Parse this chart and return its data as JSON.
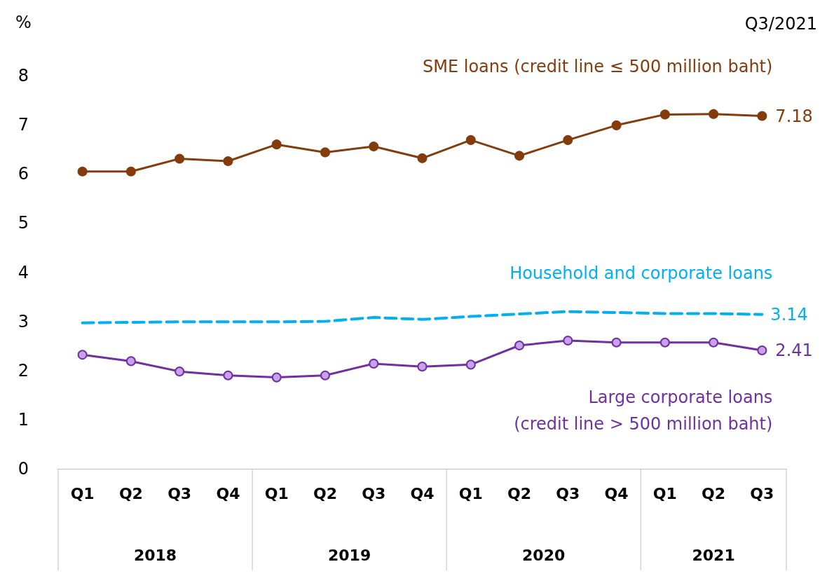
{
  "chart_data": {
    "type": "line",
    "ylabel": "%",
    "subtitle": "Q3/2021",
    "categories": [
      "Q1",
      "Q2",
      "Q3",
      "Q4",
      "Q1",
      "Q2",
      "Q3",
      "Q4",
      "Q1",
      "Q2",
      "Q3",
      "Q4",
      "Q1",
      "Q2",
      "Q3"
    ],
    "annotations": [
      "2018",
      "2019",
      "2020",
      "2021"
    ],
    "ylim": [
      0,
      8
    ],
    "yticks": [
      0,
      1,
      2,
      3,
      4,
      5,
      6,
      7,
      8
    ],
    "grid": false,
    "legend": false,
    "series": [
      {
        "name": "SME loans (credit line ≤ 500 million baht)",
        "color": "#843c0c",
        "marker": "circle",
        "line_style": "solid",
        "values": [
          6.05,
          6.05,
          6.31,
          6.26,
          6.6,
          6.44,
          6.56,
          6.32,
          6.69,
          6.37,
          6.69,
          6.99,
          7.21,
          7.22,
          7.18
        ],
        "value_labels": [
          null,
          null,
          null,
          null,
          null,
          null,
          null,
          null,
          null,
          null,
          null,
          null,
          null,
          null,
          "7.18"
        ]
      },
      {
        "name": "Household and corporate loans",
        "color": "#00b0f0",
        "marker": "none",
        "line_style": "dashed",
        "values": [
          2.97,
          2.98,
          2.99,
          2.99,
          2.99,
          3.0,
          3.08,
          3.04,
          3.1,
          3.15,
          3.2,
          3.18,
          3.16,
          3.16,
          3.14
        ],
        "value_labels": [
          null,
          null,
          null,
          null,
          null,
          null,
          null,
          null,
          null,
          null,
          null,
          null,
          null,
          null,
          "3.14"
        ]
      },
      {
        "name": "Large corporate loans\n(credit line > 500 million baht)",
        "color": "#7030a0",
        "marker": "circle",
        "line_style": "solid",
        "values": [
          2.32,
          2.19,
          1.98,
          1.9,
          1.86,
          1.9,
          2.14,
          2.08,
          2.12,
          2.51,
          2.61,
          2.57,
          2.57,
          2.57,
          2.41
        ],
        "value_labels": [
          null,
          null,
          null,
          null,
          null,
          null,
          null,
          null,
          null,
          null,
          null,
          null,
          null,
          null,
          "2.41"
        ]
      }
    ]
  }
}
